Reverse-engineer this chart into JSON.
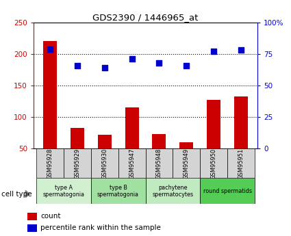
{
  "title": "GDS2390 / 1446965_at",
  "samples": [
    "GSM95928",
    "GSM95929",
    "GSM95930",
    "GSM95947",
    "GSM95948",
    "GSM95949",
    "GSM95950",
    "GSM95951"
  ],
  "counts": [
    220,
    83,
    72,
    115,
    73,
    60,
    127,
    133
  ],
  "percentiles": [
    79,
    66,
    64,
    71,
    68,
    66,
    77,
    78
  ],
  "cell_types": [
    {
      "label": "type A\nspermatogonia",
      "span": [
        0,
        2
      ],
      "color": "#d0f0d0"
    },
    {
      "label": "type B\nspermatogonia",
      "span": [
        2,
        4
      ],
      "color": "#a0e0a0"
    },
    {
      "label": "pachytene\nspermatocytes",
      "span": [
        4,
        6
      ],
      "color": "#c0eac0"
    },
    {
      "label": "round spermatids",
      "span": [
        6,
        8
      ],
      "color": "#55cc55"
    }
  ],
  "bar_color": "#cc0000",
  "dot_color": "#0000cc",
  "left_axis_color": "#cc0000",
  "right_axis_color": "#0000cc",
  "ylim_left": [
    50,
    250
  ],
  "ylim_right": [
    0,
    100
  ],
  "yticks_left": [
    50,
    100,
    150,
    200,
    250
  ],
  "yticks_right": [
    0,
    25,
    50,
    75,
    100
  ],
  "ytick_labels_right": [
    "0",
    "25",
    "50",
    "75",
    "100%"
  ],
  "grid_lines": [
    100,
    150,
    200
  ],
  "background_color": "#ffffff",
  "grid_color": "#000000",
  "sample_box_color": "#d4d4d4"
}
